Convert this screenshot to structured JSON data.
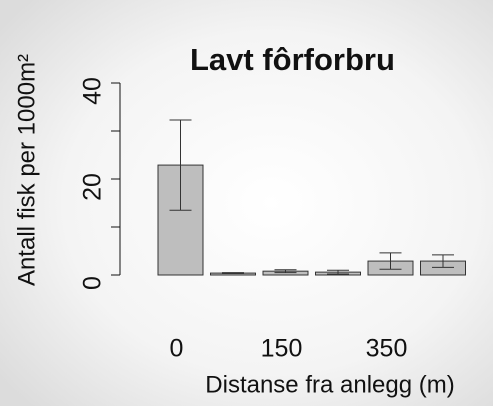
{
  "chart_data": {
    "type": "bar",
    "title": "Lavt fôrforbru",
    "title_color": "#1fb34a",
    "y_label": "Antall fisk per 1000m²",
    "x_label": "Distanse fra anlegg (m)",
    "categories": [
      "0",
      null,
      "150",
      null,
      "350",
      null
    ],
    "values": [
      22.9,
      0.4,
      0.8,
      0.6,
      2.9,
      2.9
    ],
    "errors": [
      9.4,
      0.1,
      0.3,
      0.4,
      1.7,
      1.3
    ],
    "color": "#bebebe",
    "ylim": [
      0,
      40
    ],
    "yticks": [
      0,
      20,
      40
    ],
    "minor_yticks": [
      10,
      30
    ]
  }
}
